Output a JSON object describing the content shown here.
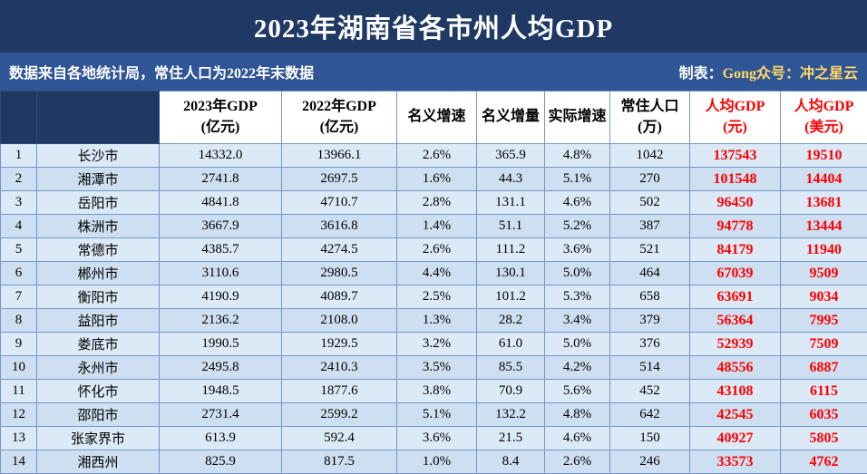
{
  "title": "2023年湖南省各市州人均GDP",
  "subtitle": {
    "left": "数据来自各地统计局，常住人口为2022年末数据",
    "right_label": "制表：",
    "right_value": "Gong众号：冲之星云"
  },
  "colors": {
    "title_bg": "#203864",
    "subtitle_bg": "#2F5597",
    "accent_red": "#FE0000",
    "note_yellow": "#FFD966",
    "row_odd": "#DCE9F6",
    "row_even": "#CDDFF0",
    "grid": "#7097CC"
  },
  "chart_data": {
    "type": "table",
    "title": "2023年湖南省各市州人均GDP",
    "columns": [
      {
        "key": "rank",
        "line1": "",
        "line2": "",
        "red": false
      },
      {
        "key": "city",
        "line1": "",
        "line2": "",
        "red": false
      },
      {
        "key": "gdp2023",
        "line1": "2023年GDP",
        "line2": "(亿元)",
        "red": false
      },
      {
        "key": "gdp2022",
        "line1": "2022年GDP",
        "line2": "(亿元)",
        "red": false
      },
      {
        "key": "nominal_growth",
        "line1": "名义增速",
        "line2": "",
        "red": false
      },
      {
        "key": "nominal_increase",
        "line1": "名义增量",
        "line2": "",
        "red": false
      },
      {
        "key": "real_growth",
        "line1": "实际增速",
        "line2": "",
        "red": false
      },
      {
        "key": "population",
        "line1": "常住人口",
        "line2": "(万)",
        "red": false
      },
      {
        "key": "pc_cny",
        "line1": "人均GDP",
        "line2": "(元)",
        "red": true
      },
      {
        "key": "pc_usd",
        "line1": "人均GDP",
        "line2": "(美元)",
        "red": true
      }
    ],
    "rows": [
      {
        "rank": "1",
        "city": "长沙市",
        "gdp2023": "14332.0",
        "gdp2022": "13966.1",
        "nominal_growth": "2.6%",
        "nominal_increase": "365.9",
        "real_growth": "4.8%",
        "population": "1042",
        "pc_cny": "137543",
        "pc_usd": "19510"
      },
      {
        "rank": "2",
        "city": "湘潭市",
        "gdp2023": "2741.8",
        "gdp2022": "2697.5",
        "nominal_growth": "1.6%",
        "nominal_increase": "44.3",
        "real_growth": "5.1%",
        "population": "270",
        "pc_cny": "101548",
        "pc_usd": "14404"
      },
      {
        "rank": "3",
        "city": "岳阳市",
        "gdp2023": "4841.8",
        "gdp2022": "4710.7",
        "nominal_growth": "2.8%",
        "nominal_increase": "131.1",
        "real_growth": "4.6%",
        "population": "502",
        "pc_cny": "96450",
        "pc_usd": "13681"
      },
      {
        "rank": "4",
        "city": "株洲市",
        "gdp2023": "3667.9",
        "gdp2022": "3616.8",
        "nominal_growth": "1.4%",
        "nominal_increase": "51.1",
        "real_growth": "5.2%",
        "population": "387",
        "pc_cny": "94778",
        "pc_usd": "13444"
      },
      {
        "rank": "5",
        "city": "常德市",
        "gdp2023": "4385.7",
        "gdp2022": "4274.5",
        "nominal_growth": "2.6%",
        "nominal_increase": "111.2",
        "real_growth": "3.6%",
        "population": "521",
        "pc_cny": "84179",
        "pc_usd": "11940"
      },
      {
        "rank": "6",
        "city": "郴州市",
        "gdp2023": "3110.6",
        "gdp2022": "2980.5",
        "nominal_growth": "4.4%",
        "nominal_increase": "130.1",
        "real_growth": "5.0%",
        "population": "464",
        "pc_cny": "67039",
        "pc_usd": "9509"
      },
      {
        "rank": "7",
        "city": "衡阳市",
        "gdp2023": "4190.9",
        "gdp2022": "4089.7",
        "nominal_growth": "2.5%",
        "nominal_increase": "101.2",
        "real_growth": "5.3%",
        "population": "658",
        "pc_cny": "63691",
        "pc_usd": "9034"
      },
      {
        "rank": "8",
        "city": "益阳市",
        "gdp2023": "2136.2",
        "gdp2022": "2108.0",
        "nominal_growth": "1.3%",
        "nominal_increase": "28.2",
        "real_growth": "3.4%",
        "population": "379",
        "pc_cny": "56364",
        "pc_usd": "7995"
      },
      {
        "rank": "9",
        "city": "娄底市",
        "gdp2023": "1990.5",
        "gdp2022": "1929.5",
        "nominal_growth": "3.2%",
        "nominal_increase": "61.0",
        "real_growth": "5.0%",
        "population": "376",
        "pc_cny": "52939",
        "pc_usd": "7509"
      },
      {
        "rank": "10",
        "city": "永州市",
        "gdp2023": "2495.8",
        "gdp2022": "2410.3",
        "nominal_growth": "3.5%",
        "nominal_increase": "85.5",
        "real_growth": "4.2%",
        "population": "514",
        "pc_cny": "48556",
        "pc_usd": "6887"
      },
      {
        "rank": "11",
        "city": "怀化市",
        "gdp2023": "1948.5",
        "gdp2022": "1877.6",
        "nominal_growth": "3.8%",
        "nominal_increase": "70.9",
        "real_growth": "5.6%",
        "population": "452",
        "pc_cny": "43108",
        "pc_usd": "6115"
      },
      {
        "rank": "12",
        "city": "邵阳市",
        "gdp2023": "2731.4",
        "gdp2022": "2599.2",
        "nominal_growth": "5.1%",
        "nominal_increase": "132.2",
        "real_growth": "4.8%",
        "population": "642",
        "pc_cny": "42545",
        "pc_usd": "6035"
      },
      {
        "rank": "13",
        "city": "张家界市",
        "gdp2023": "613.9",
        "gdp2022": "592.4",
        "nominal_growth": "3.6%",
        "nominal_increase": "21.5",
        "real_growth": "4.6%",
        "population": "150",
        "pc_cny": "40927",
        "pc_usd": "5805"
      },
      {
        "rank": "14",
        "city": "湘西州",
        "gdp2023": "825.9",
        "gdp2022": "817.5",
        "nominal_growth": "1.0%",
        "nominal_increase": "8.4",
        "real_growth": "2.6%",
        "population": "246",
        "pc_cny": "33573",
        "pc_usd": "4762"
      }
    ]
  }
}
